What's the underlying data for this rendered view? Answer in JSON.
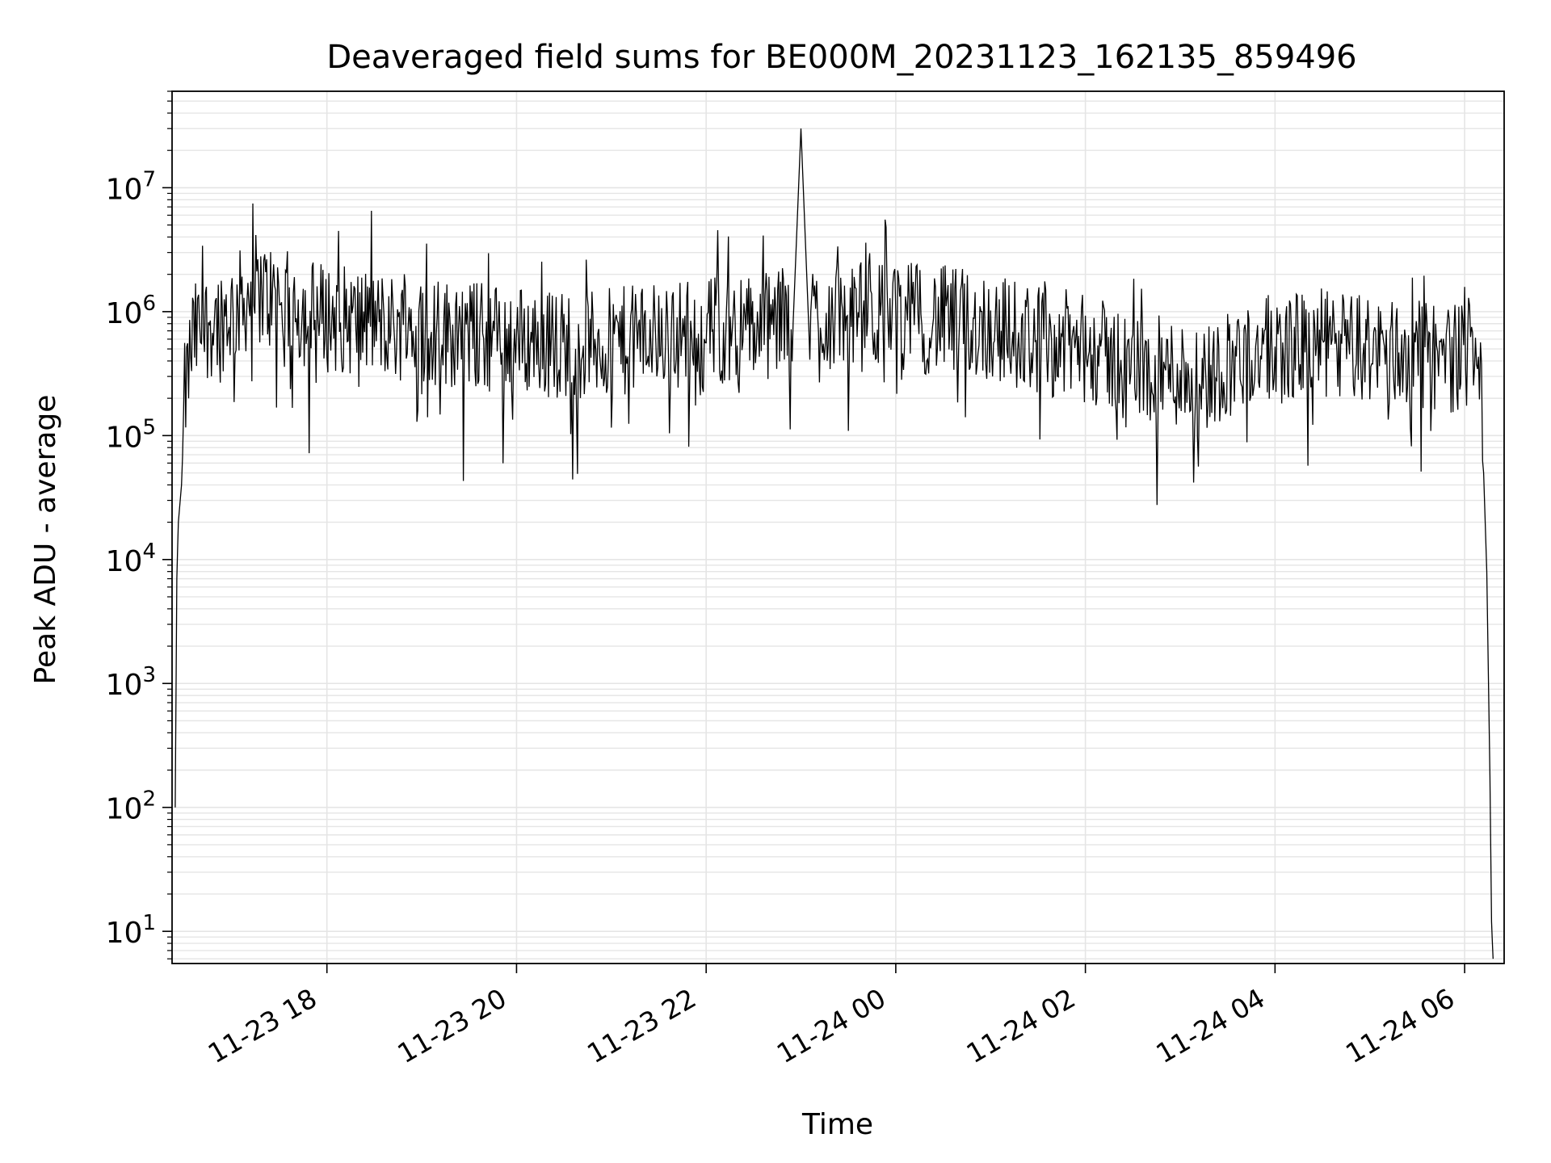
{
  "chart_data": {
    "type": "line",
    "title": "Deaveraged field sums for BE000M_20231123_162135_859496",
    "xlabel": "Time",
    "ylabel": "Peak ADU - average",
    "x_scale": "time",
    "y_scale": "log",
    "xlim": [
      "2023-11-23 16:22",
      "2023-11-24 06:25"
    ],
    "ylim": [
      5.5,
      60000000
    ],
    "x_ticks": [
      "11-23 18",
      "11-23 20",
      "11-23 22",
      "11-24 00",
      "11-24 02",
      "11-24 04",
      "11-24 06"
    ],
    "x_tick_times": [
      "2023-11-23 18:00",
      "2023-11-23 20:00",
      "2023-11-23 22:00",
      "2023-11-24 00:00",
      "2023-11-24 02:00",
      "2023-11-24 04:00",
      "2023-11-24 06:00"
    ],
    "y_ticks": [
      {
        "value": 10,
        "base": "10",
        "exp": "1"
      },
      {
        "value": 100,
        "base": "10",
        "exp": "2"
      },
      {
        "value": 1000,
        "base": "10",
        "exp": "3"
      },
      {
        "value": 10000,
        "base": "10",
        "exp": "4"
      },
      {
        "value": 100000,
        "base": "10",
        "exp": "5"
      },
      {
        "value": 1000000,
        "base": "10",
        "exp": "6"
      },
      {
        "value": 10000000,
        "base": "10",
        "exp": "7"
      }
    ],
    "grid": true,
    "legend": "none",
    "line_color": "#000000",
    "grid_color": "#e5e5e5",
    "series": [
      {
        "x": [
          "2023-11-23 16:24",
          "2023-11-23 16:25",
          "2023-11-23 16:26",
          "2023-11-23 16:28",
          "2023-11-23 16:30",
          "2023-11-23 16:35",
          "2023-11-23 16:45",
          "2023-11-23 17:00",
          "2023-11-23 17:15",
          "2023-11-23 17:30",
          "2023-11-23 17:45",
          "2023-11-23 18:00",
          "2023-11-23 18:30",
          "2023-11-23 19:00",
          "2023-11-23 19:30",
          "2023-11-23 20:00",
          "2023-11-23 20:30",
          "2023-11-23 21:00",
          "2023-11-23 21:30",
          "2023-11-23 22:00",
          "2023-11-23 22:30",
          "2023-11-23 22:55",
          "2023-11-23 23:00",
          "2023-11-23 23:05",
          "2023-11-23 23:30",
          "2023-11-24 00:00",
          "2023-11-24 00:30",
          "2023-11-24 01:00",
          "2023-11-24 01:30",
          "2023-11-24 02:00",
          "2023-11-24 02:20",
          "2023-11-24 02:30",
          "2023-11-24 03:00",
          "2023-11-24 03:20",
          "2023-11-24 03:30",
          "2023-11-24 04:00",
          "2023-11-24 04:30",
          "2023-11-24 05:00",
          "2023-11-24 05:30",
          "2023-11-24 06:00",
          "2023-11-24 06:05",
          "2023-11-24 06:10",
          "2023-11-24 06:12",
          "2023-11-24 06:14",
          "2023-11-24 06:16",
          "2023-11-24 06:17",
          "2023-11-24 06:18"
        ],
        "values": [
          100,
          7000,
          20000,
          40000,
          200000,
          600000,
          800000,
          1000000,
          1500000,
          1200000,
          1000000,
          900000,
          800000,
          700000,
          650000,
          600000,
          550000,
          550000,
          650000,
          700000,
          750000,
          800000,
          30000000,
          900000,
          900000,
          950000,
          850000,
          750000,
          600000,
          500000,
          400000,
          350000,
          320000,
          300000,
          400000,
          500000,
          550000,
          500000,
          450000,
          420000,
          700000,
          500000,
          50000,
          8000,
          180,
          12,
          6
        ]
      }
    ]
  }
}
